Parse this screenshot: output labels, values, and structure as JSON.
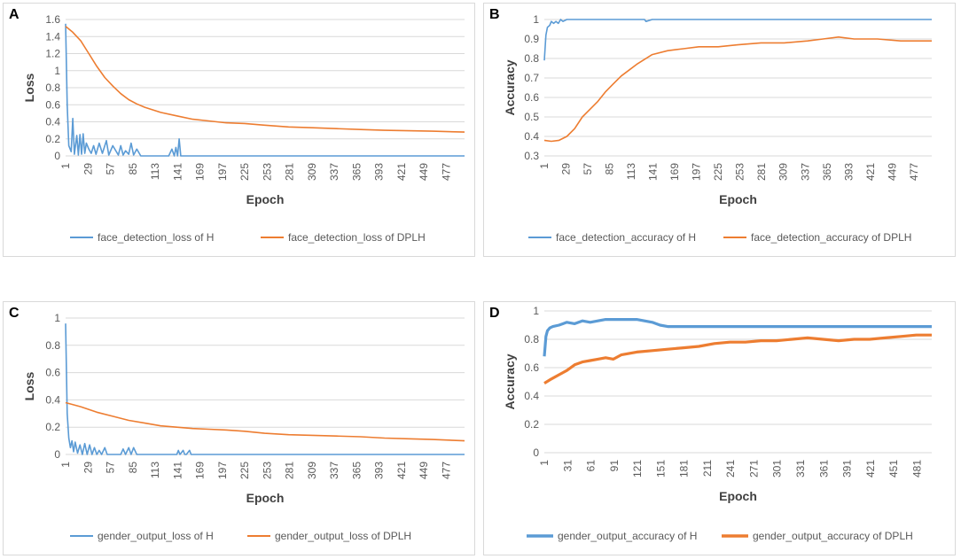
{
  "chart_data": [
    {
      "panel": "A",
      "type": "line",
      "xlabel": "Epoch",
      "ylabel": "Loss",
      "ylim": [
        0,
        1.6
      ],
      "yticks": [
        0,
        0.2,
        0.4,
        0.6,
        0.8,
        1,
        1.2,
        1.4,
        1.6
      ],
      "xlim": [
        1,
        500
      ],
      "xticks": [
        1,
        29,
        57,
        85,
        113,
        141,
        169,
        197,
        225,
        253,
        281,
        309,
        337,
        365,
        393,
        421,
        449,
        477
      ],
      "legend": "bottom",
      "grid": true,
      "series": [
        {
          "name": "face_detection_loss of H",
          "color": "#5B9BD5",
          "x": [
            1,
            3,
            5,
            8,
            10,
            12,
            15,
            17,
            19,
            21,
            23,
            25,
            27,
            30,
            33,
            36,
            39,
            43,
            47,
            52,
            55,
            60,
            67,
            70,
            73,
            76,
            80,
            83,
            86,
            90,
            95,
            130,
            134,
            137,
            139,
            141,
            143,
            145,
            150,
            500
          ],
          "values": [
            1.55,
            0.6,
            0.12,
            0.05,
            0.44,
            0.02,
            0.24,
            0.01,
            0.25,
            0.02,
            0.26,
            0.03,
            0.15,
            0.08,
            0.03,
            0.12,
            0.02,
            0.15,
            0.03,
            0.18,
            0.01,
            0.12,
            0.01,
            0.12,
            0.01,
            0.06,
            0.02,
            0.15,
            0.01,
            0.08,
            0.0,
            0.0,
            0.08,
            0.0,
            0.1,
            0.0,
            0.2,
            0.0,
            0.0,
            0.0
          ]
        },
        {
          "name": "face_detection_loss of DPLH",
          "color": "#ED7D31",
          "x": [
            1,
            10,
            20,
            30,
            40,
            50,
            60,
            70,
            80,
            90,
            100,
            120,
            140,
            160,
            180,
            200,
            225,
            250,
            280,
            310,
            340,
            370,
            400,
            430,
            460,
            500
          ],
          "values": [
            1.52,
            1.45,
            1.35,
            1.2,
            1.05,
            0.92,
            0.82,
            0.73,
            0.66,
            0.61,
            0.57,
            0.51,
            0.47,
            0.43,
            0.41,
            0.39,
            0.38,
            0.36,
            0.34,
            0.33,
            0.32,
            0.31,
            0.3,
            0.295,
            0.29,
            0.28
          ]
        }
      ]
    },
    {
      "panel": "B",
      "type": "line",
      "xlabel": "Epoch",
      "ylabel": "Accuracy",
      "ylim": [
        0.3,
        1
      ],
      "yticks": [
        0.3,
        0.4,
        0.5,
        0.6,
        0.7,
        0.8,
        0.9,
        1
      ],
      "xlim": [
        1,
        500
      ],
      "xticks": [
        1,
        29,
        57,
        85,
        113,
        141,
        169,
        197,
        225,
        253,
        281,
        309,
        337,
        365,
        393,
        421,
        449,
        477
      ],
      "legend": "bottom",
      "grid": true,
      "series": [
        {
          "name": "face_detection_accuracy of H",
          "color": "#5B9BD5",
          "x": [
            1,
            3,
            5,
            8,
            10,
            13,
            16,
            19,
            22,
            25,
            30,
            40,
            60,
            80,
            100,
            130,
            132,
            140,
            500
          ],
          "values": [
            0.79,
            0.92,
            0.96,
            0.97,
            0.99,
            0.98,
            0.99,
            0.98,
            1.0,
            0.99,
            1.0,
            1.0,
            1.0,
            1.0,
            1.0,
            1.0,
            0.99,
            1.0,
            1.0
          ]
        },
        {
          "name": "face_detection_accuracy of DPLH",
          "color": "#ED7D31",
          "x": [
            1,
            10,
            20,
            30,
            40,
            50,
            60,
            70,
            80,
            90,
            100,
            110,
            120,
            140,
            160,
            180,
            200,
            225,
            250,
            280,
            310,
            340,
            360,
            380,
            400,
            430,
            460,
            500
          ],
          "values": [
            0.38,
            0.375,
            0.38,
            0.4,
            0.44,
            0.5,
            0.54,
            0.58,
            0.63,
            0.67,
            0.71,
            0.74,
            0.77,
            0.82,
            0.84,
            0.85,
            0.86,
            0.86,
            0.87,
            0.88,
            0.88,
            0.89,
            0.9,
            0.91,
            0.9,
            0.9,
            0.89,
            0.89
          ]
        }
      ]
    },
    {
      "panel": "C",
      "type": "line",
      "xlabel": "Epoch",
      "ylabel": "Loss",
      "ylim": [
        0,
        1
      ],
      "yticks": [
        0,
        0.2,
        0.4,
        0.6,
        0.8,
        1
      ],
      "xlim": [
        1,
        500
      ],
      "xticks": [
        1,
        29,
        57,
        85,
        113,
        141,
        169,
        197,
        225,
        253,
        281,
        309,
        337,
        365,
        393,
        421,
        449,
        477
      ],
      "legend": "bottom",
      "grid": true,
      "series": [
        {
          "name": "gender_output_loss of H",
          "color": "#5B9BD5",
          "x": [
            1,
            3,
            5,
            7,
            9,
            11,
            13,
            16,
            19,
            22,
            25,
            28,
            31,
            34,
            37,
            40,
            43,
            46,
            50,
            53,
            70,
            73,
            76,
            80,
            83,
            86,
            90,
            140,
            142,
            144,
            148,
            150,
            152,
            156,
            158,
            160,
            500
          ],
          "values": [
            0.96,
            0.3,
            0.12,
            0.05,
            0.1,
            0.02,
            0.09,
            0.01,
            0.07,
            0.0,
            0.08,
            0.0,
            0.07,
            0.0,
            0.05,
            0.0,
            0.03,
            0.0,
            0.05,
            0.0,
            0.0,
            0.04,
            0.0,
            0.05,
            0.0,
            0.05,
            0.0,
            0.0,
            0.03,
            0.0,
            0.03,
            0.0,
            0.0,
            0.03,
            0.0,
            0.0,
            0.0
          ]
        },
        {
          "name": "gender_output_loss of DPLH",
          "color": "#ED7D31",
          "x": [
            1,
            20,
            40,
            60,
            80,
            100,
            120,
            140,
            160,
            180,
            200,
            225,
            250,
            280,
            310,
            340,
            370,
            400,
            430,
            460,
            500
          ],
          "values": [
            0.38,
            0.35,
            0.31,
            0.28,
            0.25,
            0.23,
            0.21,
            0.2,
            0.19,
            0.185,
            0.18,
            0.17,
            0.155,
            0.145,
            0.14,
            0.135,
            0.13,
            0.12,
            0.115,
            0.11,
            0.1
          ]
        }
      ]
    },
    {
      "panel": "D",
      "type": "line",
      "xlabel": "Epoch",
      "ylabel": "Accuracy",
      "ylim": [
        0,
        1
      ],
      "yticks": [
        0,
        0.2,
        0.4,
        0.6,
        0.8,
        1
      ],
      "xlim": [
        1,
        500
      ],
      "xticks": [
        1,
        31,
        61,
        91,
        121,
        151,
        181,
        211,
        241,
        271,
        301,
        331,
        361,
        391,
        421,
        451,
        481
      ],
      "legend": "bottom",
      "grid": true,
      "series": [
        {
          "name": "gender_output_accuracy of H",
          "color": "#5B9BD5",
          "x": [
            1,
            3,
            5,
            8,
            12,
            20,
            30,
            40,
            50,
            60,
            70,
            80,
            90,
            100,
            110,
            120,
            130,
            140,
            150,
            160,
            200,
            300,
            400,
            500
          ],
          "values": [
            0.68,
            0.82,
            0.86,
            0.88,
            0.89,
            0.9,
            0.92,
            0.91,
            0.93,
            0.92,
            0.93,
            0.94,
            0.94,
            0.94,
            0.94,
            0.94,
            0.93,
            0.92,
            0.9,
            0.89,
            0.89,
            0.89,
            0.89,
            0.89
          ]
        },
        {
          "name": "gender_output_accuracy of DPLH",
          "color": "#ED7D31",
          "x": [
            1,
            10,
            20,
            30,
            40,
            50,
            60,
            70,
            80,
            90,
            100,
            120,
            140,
            160,
            180,
            200,
            220,
            240,
            260,
            280,
            300,
            320,
            340,
            360,
            380,
            400,
            420,
            440,
            460,
            480,
            500
          ],
          "values": [
            0.49,
            0.52,
            0.55,
            0.58,
            0.62,
            0.64,
            0.65,
            0.66,
            0.67,
            0.66,
            0.69,
            0.71,
            0.72,
            0.73,
            0.74,
            0.75,
            0.77,
            0.78,
            0.78,
            0.79,
            0.79,
            0.8,
            0.81,
            0.8,
            0.79,
            0.8,
            0.8,
            0.81,
            0.82,
            0.83,
            0.83
          ]
        }
      ]
    }
  ]
}
